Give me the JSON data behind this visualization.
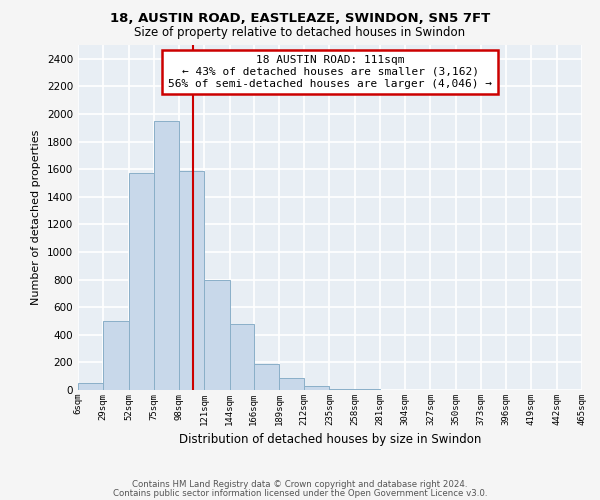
{
  "title": "18, AUSTIN ROAD, EASTLEAZE, SWINDON, SN5 7FT",
  "subtitle": "Size of property relative to detached houses in Swindon",
  "xlabel": "Distribution of detached houses by size in Swindon",
  "ylabel": "Number of detached properties",
  "bar_color": "#c8d8ea",
  "bar_edge_color": "#8aafc8",
  "bin_labels": [
    "6sqm",
    "29sqm",
    "52sqm",
    "75sqm",
    "98sqm",
    "121sqm",
    "144sqm",
    "166sqm",
    "189sqm",
    "212sqm",
    "235sqm",
    "258sqm",
    "281sqm",
    "304sqm",
    "327sqm",
    "350sqm",
    "373sqm",
    "396sqm",
    "419sqm",
    "442sqm",
    "465sqm"
  ],
  "bin_edges": [
    6,
    29,
    52,
    75,
    98,
    121,
    144,
    166,
    189,
    212,
    235,
    258,
    281,
    304,
    327,
    350,
    373,
    396,
    419,
    442,
    465
  ],
  "bar_heights": [
    50,
    500,
    1570,
    1950,
    1590,
    800,
    480,
    185,
    90,
    30,
    10,
    5,
    2,
    1,
    0,
    0,
    0,
    0,
    0,
    0
  ],
  "ylim": [
    0,
    2500
  ],
  "yticks": [
    0,
    200,
    400,
    600,
    800,
    1000,
    1200,
    1400,
    1600,
    1800,
    2000,
    2200,
    2400
  ],
  "property_line_x": 111,
  "annotation_title": "18 AUSTIN ROAD: 111sqm",
  "annotation_line1": "← 43% of detached houses are smaller (3,162)",
  "annotation_line2": "56% of semi-detached houses are larger (4,046) →",
  "annotation_box_color": "#ffffff",
  "annotation_box_edge": "#cc0000",
  "property_line_color": "#cc0000",
  "footer_line1": "Contains HM Land Registry data © Crown copyright and database right 2024.",
  "footer_line2": "Contains public sector information licensed under the Open Government Licence v3.0.",
  "plot_bg_color": "#e8eef4",
  "fig_bg_color": "#f5f5f5",
  "grid_color": "#ffffff"
}
